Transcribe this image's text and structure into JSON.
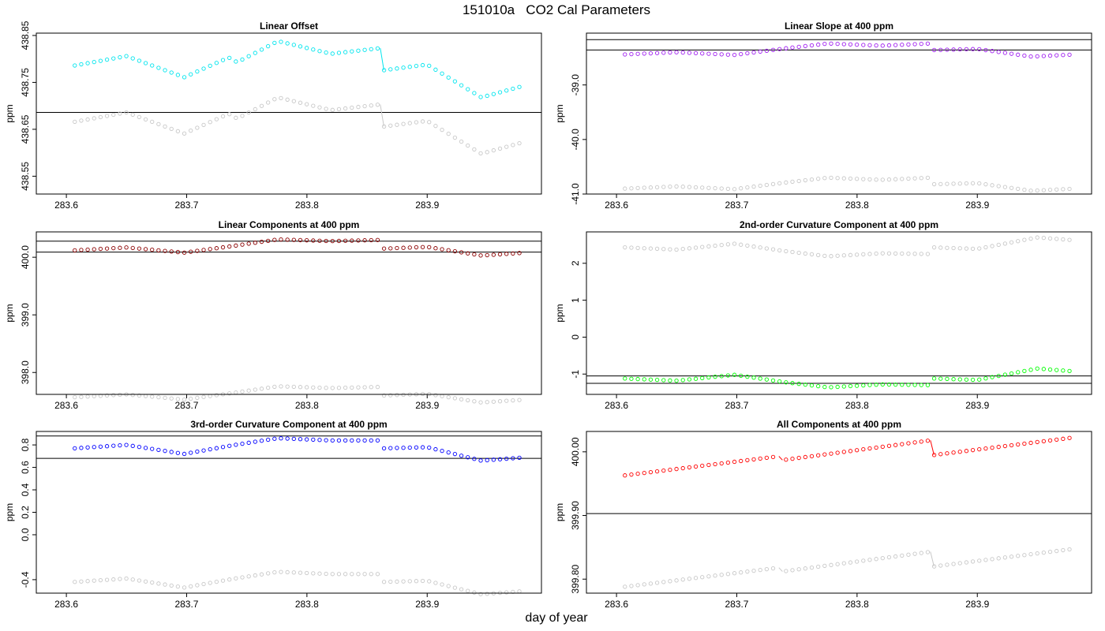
{
  "figure": {
    "title": "151010a   CO2 Cal Parameters",
    "xlabel": "day of year"
  },
  "chart_data": [
    {
      "type": "scatter",
      "title": "Linear Offset",
      "ylabel": "ppm",
      "xlim": [
        283.575,
        283.995
      ],
      "ylim": [
        438.512,
        438.855
      ],
      "xticks": [
        283.6,
        283.7,
        283.8,
        283.9
      ],
      "xtick_labels": [
        "283.6",
        "283.7",
        "283.8",
        "283.9"
      ],
      "yticks": [
        438.55,
        438.65,
        438.75,
        438.85
      ],
      "ytick_labels": [
        "438.55",
        "438.65",
        "438.75",
        "438.85"
      ],
      "hlines": [
        438.686
      ],
      "grid": false,
      "segments": [
        {
          "start": 283.607,
          "end": 283.861,
          "y_start": 438.786,
          "y_end": 438.823,
          "color": "#00e5ee",
          "gray_offset": -0.12,
          "knots": [
            [
              283.607,
              438.786
            ],
            [
              283.65,
              438.806
            ],
            [
              283.698,
              438.761
            ],
            [
              283.735,
              438.803
            ],
            [
              283.742,
              438.793
            ],
            [
              283.776,
              438.838
            ],
            [
              283.82,
              438.811
            ],
            [
              283.861,
              438.823
            ]
          ]
        },
        {
          "start": 283.864,
          "end": 283.982,
          "y_start": 438.776,
          "y_end": 438.744,
          "color": "#00e5ee",
          "gray_offset": -0.12,
          "knots": [
            [
              283.864,
              438.776
            ],
            [
              283.9,
              438.788
            ],
            [
              283.945,
              438.718
            ],
            [
              283.982,
              438.744
            ]
          ]
        }
      ]
    },
    {
      "type": "scatter",
      "title": "Linear Slope at 400 ppm",
      "ylabel": "ppm",
      "xlim": [
        283.575,
        283.995
      ],
      "ylim": [
        -41.0,
        -38.05
      ],
      "xticks": [
        283.6,
        283.7,
        283.8,
        283.9
      ],
      "xtick_labels": [
        "283.6",
        "283.7",
        "283.8",
        "283.9"
      ],
      "yticks": [
        -41.0,
        -40.0,
        -39.0
      ],
      "ytick_labels": [
        "-41.0",
        "-40.0",
        "-39.0"
      ],
      "hlines": [
        -38.17,
        -38.36
      ],
      "grid": false,
      "segments": [
        {
          "start": 283.607,
          "end": 283.982,
          "y_start": -38.44,
          "y_end": -38.44,
          "color": "#a020f0",
          "gray_offset": -2.46,
          "knots": [
            [
              283.607,
              -38.44
            ],
            [
              283.65,
              -38.4
            ],
            [
              283.698,
              -38.45
            ],
            [
              283.74,
              -38.33
            ],
            [
              283.776,
              -38.24
            ],
            [
              283.82,
              -38.28
            ],
            [
              283.861,
              -38.24
            ],
            [
              283.864,
              -38.36
            ],
            [
              283.9,
              -38.34
            ],
            [
              283.945,
              -38.48
            ],
            [
              283.982,
              -38.44
            ]
          ]
        }
      ]
    },
    {
      "type": "scatter",
      "title": "Linear Components at 400 ppm",
      "ylabel": "ppm",
      "xlim": [
        283.575,
        283.995
      ],
      "ylim": [
        397.62,
        400.44
      ],
      "xticks": [
        283.6,
        283.7,
        283.8,
        283.9
      ],
      "xtick_labels": [
        "283.6",
        "283.7",
        "283.8",
        "283.9"
      ],
      "yticks": [
        398.0,
        399.0,
        400.0
      ],
      "ytick_labels": [
        "398.0",
        "399.0",
        "400.0"
      ],
      "hlines": [
        400.28,
        400.09
      ],
      "grid": false,
      "segments": [
        {
          "start": 283.607,
          "end": 283.982,
          "y_start": 400.12,
          "y_end": 400.08,
          "color": "#8b0000",
          "gray_offset": -2.55,
          "knots": [
            [
              283.607,
              400.12
            ],
            [
              283.65,
              400.17
            ],
            [
              283.698,
              400.08
            ],
            [
              283.74,
              400.2
            ],
            [
              283.776,
              400.31
            ],
            [
              283.82,
              400.28
            ],
            [
              283.861,
              400.3
            ],
            [
              283.864,
              400.15
            ],
            [
              283.9,
              400.18
            ],
            [
              283.945,
              400.03
            ],
            [
              283.982,
              400.08
            ]
          ]
        }
      ]
    },
    {
      "type": "scatter",
      "title": "2nd-order Curvature Component at 400 ppm",
      "ylabel": "ppm",
      "xlim": [
        283.575,
        283.995
      ],
      "ylim": [
        -1.55,
        2.85
      ],
      "xticks": [
        283.6,
        283.7,
        283.8,
        283.9
      ],
      "xtick_labels": [
        "283.6",
        "283.7",
        "283.8",
        "283.9"
      ],
      "yticks": [
        -1,
        0,
        1,
        2
      ],
      "ytick_labels": [
        "-1",
        "0",
        "1",
        "2"
      ],
      "hlines": [
        -1.05,
        -1.25
      ],
      "grid": false,
      "segments": [
        {
          "start": 283.607,
          "end": 283.982,
          "y_start": -1.12,
          "y_end": -0.93,
          "color": "#00ff00",
          "gray_offset": 3.55,
          "knots": [
            [
              283.607,
              -1.12
            ],
            [
              283.65,
              -1.18
            ],
            [
              283.698,
              -1.02
            ],
            [
              283.74,
              -1.22
            ],
            [
              283.776,
              -1.36
            ],
            [
              283.82,
              -1.28
            ],
            [
              283.861,
              -1.3
            ],
            [
              283.864,
              -1.12
            ],
            [
              283.9,
              -1.16
            ],
            [
              283.95,
              -0.85
            ],
            [
              283.982,
              -0.93
            ]
          ]
        }
      ]
    },
    {
      "type": "scatter",
      "title": "3rd-order Curvature Component at 400 ppm",
      "ylabel": "ppm",
      "xlim": [
        283.575,
        283.995
      ],
      "ylim": [
        -0.52,
        0.92
      ],
      "xticks": [
        283.6,
        283.7,
        283.8,
        283.9
      ],
      "xtick_labels": [
        "283.6",
        "283.7",
        "283.8",
        "283.9"
      ],
      "yticks": [
        -0.4,
        0.0,
        0.2,
        0.4,
        0.6,
        0.8
      ],
      "ytick_labels": [
        "-0.4",
        "0.0",
        "0.2",
        "0.4",
        "0.6",
        "0.8"
      ],
      "hlines": [
        0.88,
        0.68
      ],
      "grid": false,
      "segments": [
        {
          "start": 283.607,
          "end": 283.982,
          "y_start": 0.77,
          "y_end": 0.69,
          "color": "#0000ff",
          "gray_offset": -1.19,
          "knots": [
            [
              283.607,
              0.77
            ],
            [
              283.65,
              0.8
            ],
            [
              283.698,
              0.72
            ],
            [
              283.74,
              0.8
            ],
            [
              283.776,
              0.86
            ],
            [
              283.82,
              0.84
            ],
            [
              283.861,
              0.84
            ],
            [
              283.864,
              0.77
            ],
            [
              283.9,
              0.78
            ],
            [
              283.945,
              0.66
            ],
            [
              283.982,
              0.69
            ]
          ]
        }
      ]
    },
    {
      "type": "scatter",
      "title": "All Components at 400 ppm",
      "ylabel": "ppm",
      "xlim": [
        283.575,
        283.995
      ],
      "ylim": [
        399.778,
        400.032
      ],
      "xticks": [
        283.6,
        283.7,
        283.8,
        283.9
      ],
      "xtick_labels": [
        "283.6",
        "283.7",
        "283.8",
        "283.9"
      ],
      "yticks": [
        399.8,
        399.9,
        400.0
      ],
      "ytick_labels": [
        "399.80",
        "399.90",
        "400.00"
      ],
      "hlines": [
        399.903
      ],
      "grid": false,
      "segments": [
        {
          "start": 283.607,
          "end": 283.735,
          "y_start": 399.963,
          "y_end": 399.993,
          "color": "#ff0000",
          "gray_offset": -0.175,
          "knots": [
            [
              283.607,
              399.963
            ],
            [
              283.735,
              399.993
            ]
          ]
        },
        {
          "start": 283.738,
          "end": 283.861,
          "y_start": 399.987,
          "y_end": 400.018,
          "color": "#ff0000",
          "gray_offset": -0.175,
          "knots": [
            [
              283.738,
              399.987
            ],
            [
              283.861,
              400.018
            ]
          ]
        },
        {
          "start": 283.864,
          "end": 283.982,
          "y_start": 399.995,
          "y_end": 400.023,
          "color": "#ff0000",
          "gray_offset": -0.175,
          "knots": [
            [
              283.864,
              399.995
            ],
            [
              283.982,
              400.023
            ]
          ]
        }
      ]
    }
  ]
}
